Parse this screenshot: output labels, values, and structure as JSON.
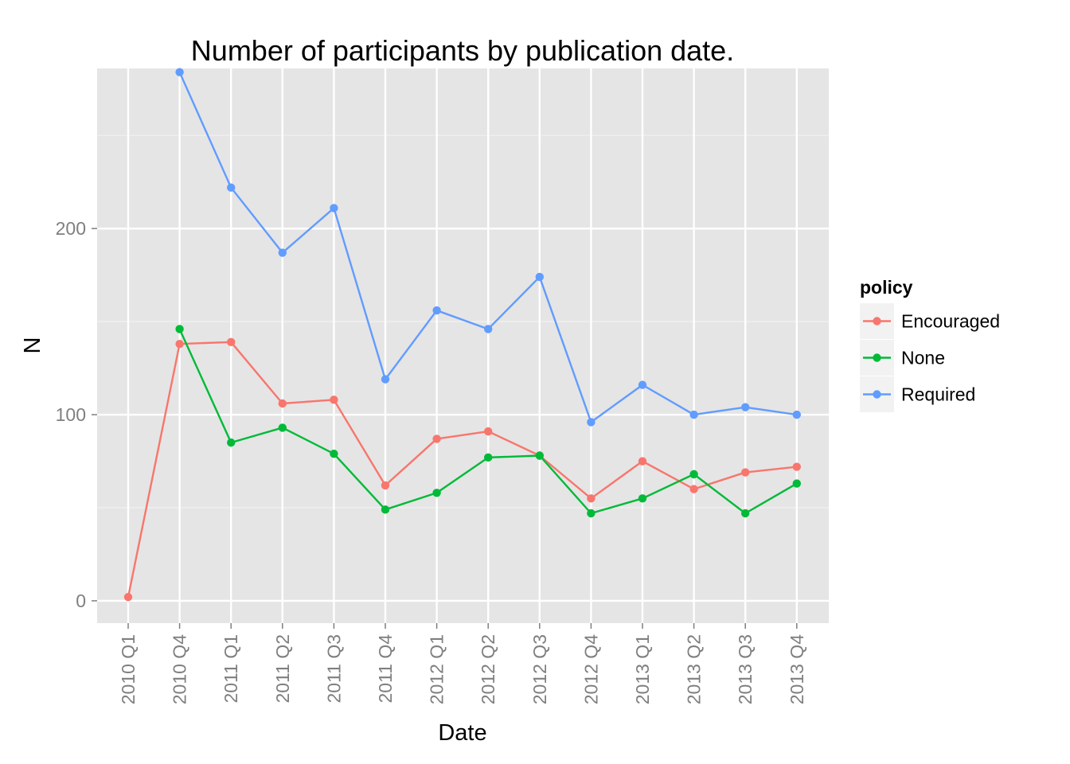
{
  "chart_data": {
    "type": "line",
    "title": "Number of participants by publication date.",
    "xlabel": "Date",
    "ylabel": "N",
    "categories": [
      "2010 Q1",
      "2010 Q4",
      "2011 Q1",
      "2011 Q2",
      "2011 Q3",
      "2011 Q4",
      "2012 Q1",
      "2012 Q2",
      "2012 Q3",
      "2012 Q4",
      "2013 Q1",
      "2013 Q2",
      "2013 Q3",
      "2013 Q4"
    ],
    "yticks": [
      0,
      100,
      200
    ],
    "ylim": [
      -12,
      286
    ],
    "grid": true,
    "legend": {
      "title": "policy",
      "position": "right"
    },
    "series": [
      {
        "name": "Encouraged",
        "color": "#f8766d",
        "values": [
          2,
          138,
          139,
          106,
          108,
          62,
          87,
          91,
          78,
          55,
          75,
          60,
          69,
          72
        ]
      },
      {
        "name": "None",
        "color": "#00ba38",
        "values": [
          null,
          146,
          85,
          93,
          79,
          49,
          58,
          77,
          78,
          47,
          55,
          68,
          47,
          63
        ]
      },
      {
        "name": "Required",
        "color": "#619cff",
        "values": [
          null,
          284,
          222,
          187,
          211,
          119,
          156,
          146,
          174,
          96,
          116,
          100,
          104,
          100
        ]
      }
    ]
  }
}
